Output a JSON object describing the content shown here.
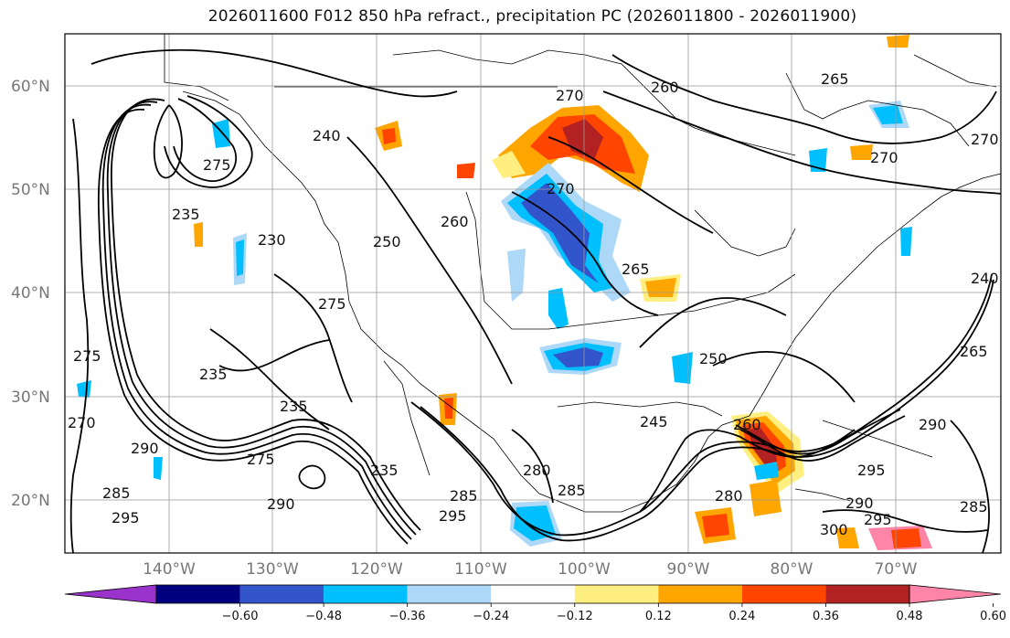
{
  "title": "2026011600 F012 850 hPa refract., precipitation PC (2026011800 - 2026011900)",
  "lat_labels": [
    "60°N",
    "50°N",
    "40°N",
    "30°N",
    "20°N"
  ],
  "lon_labels": [
    "140°W",
    "130°W",
    "120°W",
    "110°W",
    "100°W",
    "90°W",
    "80°W",
    "70°W"
  ],
  "colorbar": {
    "colors": [
      "#9a33cc",
      "#00007f",
      "#3355cc",
      "#00bfff",
      "#add8f7",
      "#ffffff",
      "#ffee80",
      "#ffa500",
      "#ff4500",
      "#b22222",
      "#ff85a8"
    ],
    "labels": [
      "−0.60",
      "−0.48",
      "−0.36",
      "−0.24",
      "−0.12",
      "0.12",
      "0.24",
      "0.36",
      "0.48",
      "0.60"
    ]
  },
  "contour_labels": [
    "260",
    "265",
    "270",
    "275",
    "270",
    "235",
    "230",
    "240",
    "250",
    "260",
    "270",
    "265",
    "275",
    "235",
    "275",
    "270",
    "290",
    "285",
    "295",
    "235",
    "275",
    "290",
    "235",
    "285",
    "295",
    "285",
    "280",
    "245",
    "250",
    "260",
    "290",
    "280",
    "295",
    "290",
    "300",
    "295",
    "285",
    "270",
    "265",
    "240"
  ],
  "colors": {
    "land_line": "#000000",
    "grid": "#999999"
  }
}
